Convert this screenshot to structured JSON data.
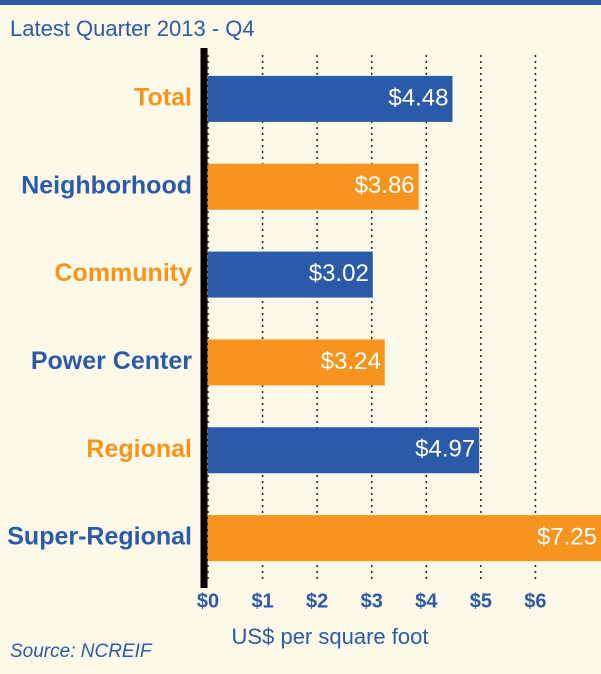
{
  "chart_data": {
    "type": "barh",
    "title": "Latest Quarter 2013 - Q4",
    "categories": [
      "Total",
      "Neighborhood",
      "Community",
      "Power Center",
      "Regional",
      "Super-Regional"
    ],
    "values": [
      4.48,
      3.86,
      3.02,
      3.24,
      4.97,
      7.25
    ],
    "value_labels": [
      "$4.48",
      "$3.86",
      "$3.02",
      "$3.24",
      "$4.97",
      "$7.25"
    ],
    "colors": [
      "#2b5ba8",
      "#f7941d",
      "#2b5ba8",
      "#f7941d",
      "#2b5ba8",
      "#f7941d"
    ],
    "xlim": [
      0,
      7
    ],
    "xticks": [
      {
        "value": 0,
        "label": "$0"
      },
      {
        "value": 1,
        "label": "$1"
      },
      {
        "value": 2,
        "label": "$2"
      },
      {
        "value": 3,
        "label": "$3"
      },
      {
        "value": 4,
        "label": "$4"
      },
      {
        "value": 5,
        "label": "$5"
      },
      {
        "value": 6,
        "label": "$6"
      }
    ],
    "xlabel": "US$ per square foot",
    "source": "Source: NCREIF",
    "grid": true
  }
}
